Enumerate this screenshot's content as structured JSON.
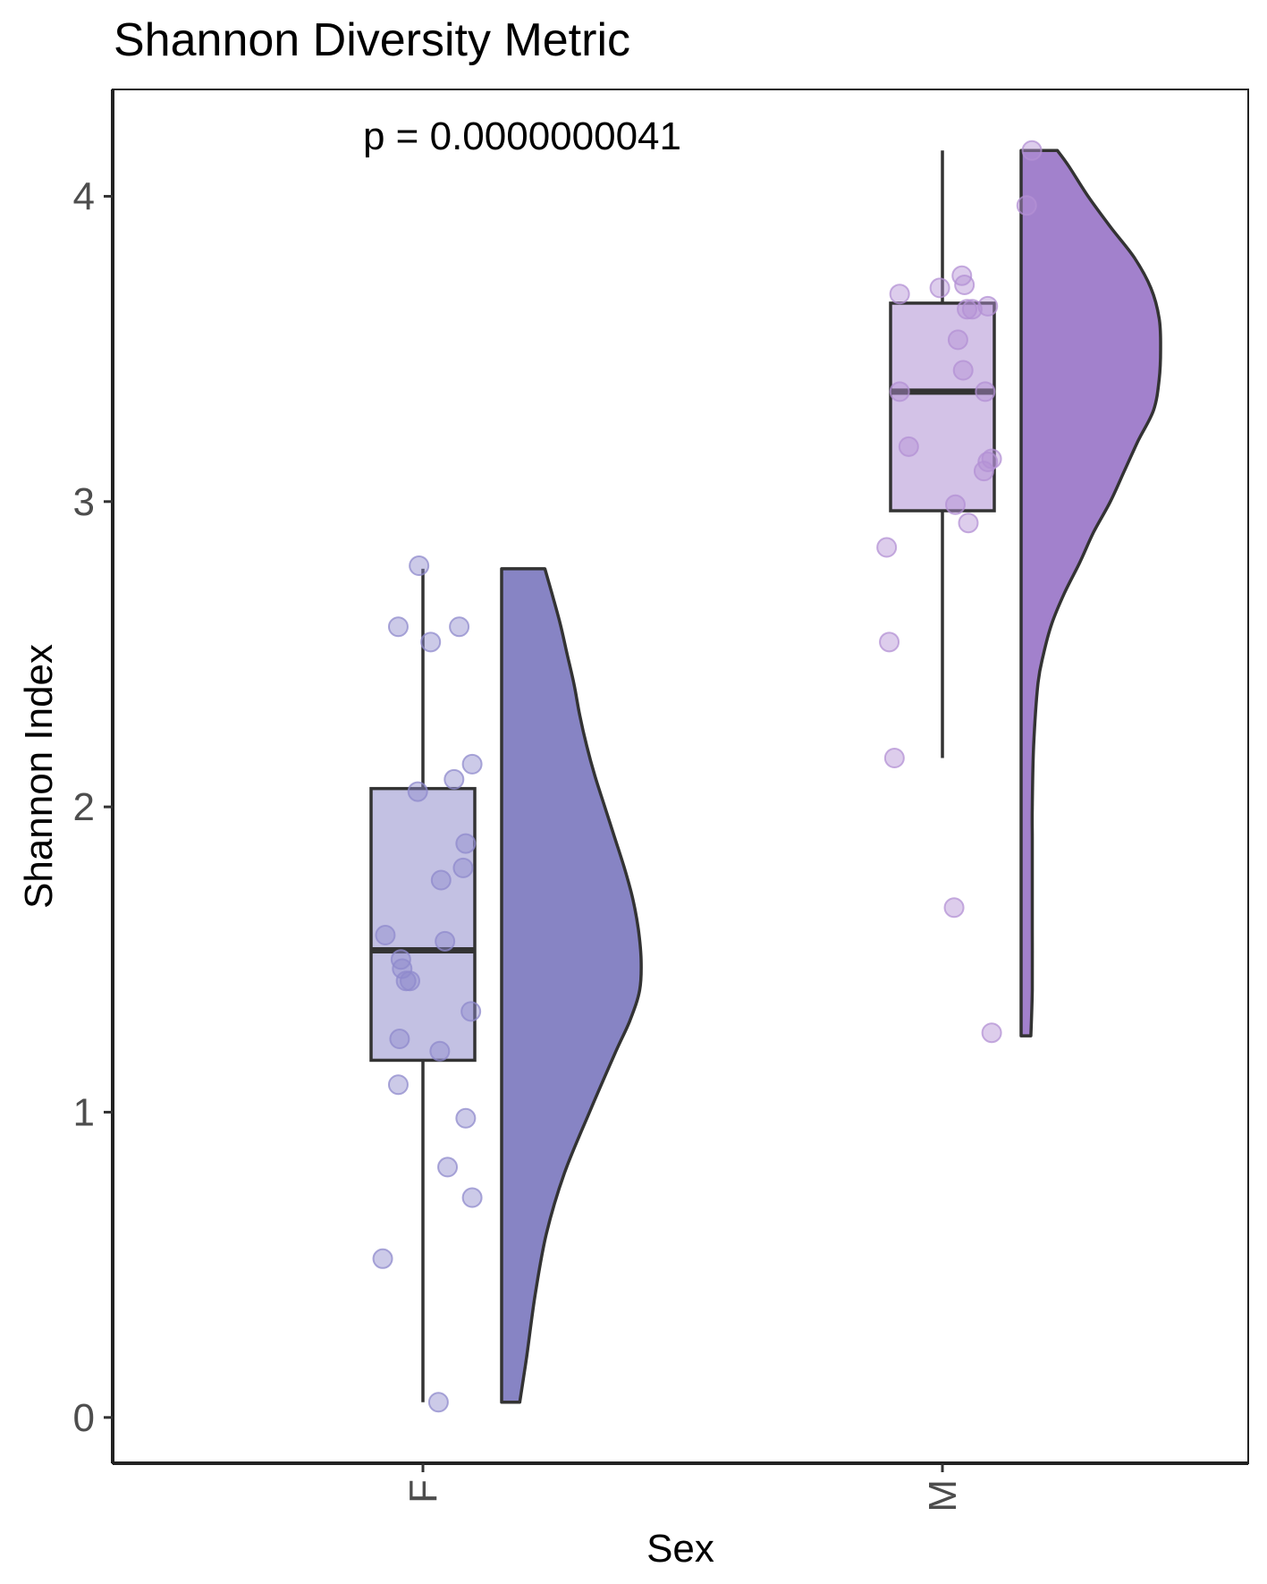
{
  "chart_data": {
    "type": "raincloud",
    "title": "Shannon Diversity Metric",
    "xlabel": "Sex",
    "ylabel": "Shannon Index",
    "categories": [
      "F",
      "M"
    ],
    "y_ticks": [
      "0",
      "1",
      "2",
      "3",
      "4"
    ],
    "ylim": [
      -0.15,
      4.35
    ],
    "grid": false,
    "legend": "none",
    "annotation": "p = 0.0000000041",
    "groups": [
      {
        "name": "F",
        "box_fill": "#c3c1e3",
        "violin_fill": "#8784c4",
        "point_color": "#8f89cc",
        "box": {
          "min": 0.05,
          "q1": 1.17,
          "median": 1.53,
          "q3": 2.06,
          "max": 2.78
        },
        "points": [
          [
            -0.03,
            2.79
          ],
          [
            -0.19,
            2.59
          ],
          [
            0.06,
            2.54
          ],
          [
            0.28,
            2.59
          ],
          [
            0.38,
            2.14
          ],
          [
            0.24,
            2.09
          ],
          [
            -0.04,
            2.05
          ],
          [
            0.33,
            1.88
          ],
          [
            0.31,
            1.8
          ],
          [
            0.14,
            1.76
          ],
          [
            -0.29,
            1.58
          ],
          [
            0.17,
            1.56
          ],
          [
            -0.17,
            1.5
          ],
          [
            -0.16,
            1.47
          ],
          [
            -0.13,
            1.43
          ],
          [
            -0.1,
            1.43
          ],
          [
            0.37,
            1.33
          ],
          [
            -0.18,
            1.24
          ],
          [
            0.13,
            1.2
          ],
          [
            -0.19,
            1.09
          ],
          [
            0.33,
            0.98
          ],
          [
            0.19,
            0.82
          ],
          [
            0.38,
            0.72
          ],
          [
            -0.31,
            0.52
          ],
          [
            0.12,
            0.05
          ]
        ],
        "density": [
          [
            0.05,
            0.13
          ],
          [
            0.2,
            0.18
          ],
          [
            0.4,
            0.24
          ],
          [
            0.6,
            0.32
          ],
          [
            0.8,
            0.45
          ],
          [
            1.0,
            0.63
          ],
          [
            1.2,
            0.82
          ],
          [
            1.3,
            0.92
          ],
          [
            1.4,
            0.99
          ],
          [
            1.5,
            1.0
          ],
          [
            1.6,
            0.98
          ],
          [
            1.7,
            0.94
          ],
          [
            1.8,
            0.88
          ],
          [
            1.9,
            0.81
          ],
          [
            2.0,
            0.74
          ],
          [
            2.1,
            0.67
          ],
          [
            2.2,
            0.61
          ],
          [
            2.3,
            0.56
          ],
          [
            2.4,
            0.52
          ],
          [
            2.5,
            0.47
          ],
          [
            2.6,
            0.42
          ],
          [
            2.7,
            0.36
          ],
          [
            2.78,
            0.31
          ]
        ]
      },
      {
        "name": "M",
        "box_fill": "#d3c2e7",
        "violin_fill": "#a281cc",
        "point_color": "#b390d4",
        "box": {
          "min": 2.16,
          "q1": 2.97,
          "median": 3.36,
          "q3": 3.65,
          "max": 4.15
        },
        "points": [
          [
            0.69,
            4.15
          ],
          [
            0.65,
            3.97
          ],
          [
            0.15,
            3.74
          ],
          [
            0.17,
            3.71
          ],
          [
            -0.02,
            3.7
          ],
          [
            -0.33,
            3.68
          ],
          [
            0.23,
            3.63
          ],
          [
            0.19,
            3.63
          ],
          [
            0.35,
            3.64
          ],
          [
            0.12,
            3.53
          ],
          [
            0.16,
            3.43
          ],
          [
            -0.33,
            3.36
          ],
          [
            0.33,
            3.36
          ],
          [
            -0.26,
            3.18
          ],
          [
            0.38,
            3.14
          ],
          [
            0.35,
            3.13
          ],
          [
            0.32,
            3.1
          ],
          [
            0.1,
            2.99
          ],
          [
            0.2,
            2.93
          ],
          [
            -0.43,
            2.85
          ],
          [
            -0.41,
            2.54
          ],
          [
            -0.37,
            2.16
          ],
          [
            0.09,
            1.67
          ],
          [
            0.38,
            1.26
          ]
        ],
        "density": [
          [
            1.25,
            0.07
          ],
          [
            1.4,
            0.08
          ],
          [
            1.6,
            0.08
          ],
          [
            1.8,
            0.08
          ],
          [
            1.9,
            0.08
          ],
          [
            2.0,
            0.08
          ],
          [
            2.2,
            0.09
          ],
          [
            2.4,
            0.12
          ],
          [
            2.5,
            0.16
          ],
          [
            2.6,
            0.22
          ],
          [
            2.7,
            0.31
          ],
          [
            2.8,
            0.42
          ],
          [
            2.9,
            0.52
          ],
          [
            3.0,
            0.64
          ],
          [
            3.1,
            0.74
          ],
          [
            3.2,
            0.84
          ],
          [
            3.3,
            0.95
          ],
          [
            3.4,
            0.99
          ],
          [
            3.5,
            1.0
          ],
          [
            3.6,
            0.99
          ],
          [
            3.7,
            0.93
          ],
          [
            3.8,
            0.81
          ],
          [
            3.9,
            0.64
          ],
          [
            4.0,
            0.48
          ],
          [
            4.1,
            0.34
          ],
          [
            4.15,
            0.26
          ]
        ]
      }
    ]
  }
}
